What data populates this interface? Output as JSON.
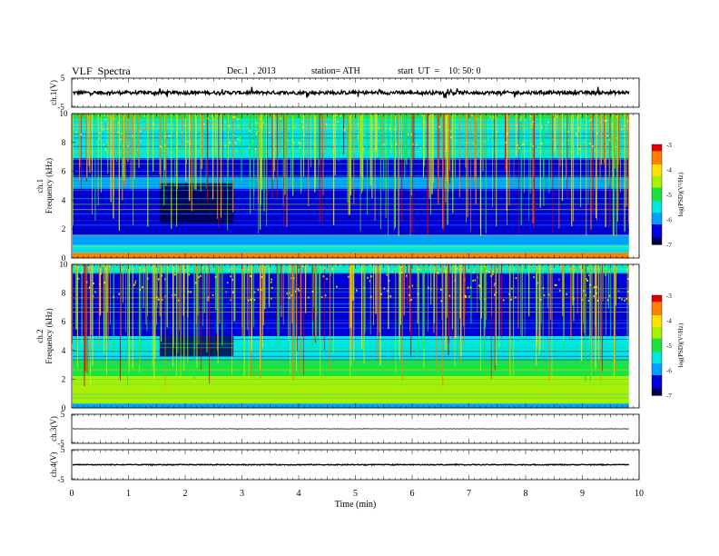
{
  "header": {
    "title": "VLF  Spectra",
    "date": "Dec.1  , 2013",
    "station": "station= ATH",
    "start": "start  UT  =    10: 50: 0"
  },
  "chart_data": [
    {
      "type": "line",
      "name": "ch.1 waveform",
      "ylabel": "ch.1(V)",
      "yticks": [
        "5",
        "-5"
      ],
      "ylim": [
        -5,
        5
      ],
      "xlim": [
        0,
        10
      ],
      "data_end": 9.82,
      "baseline": 0.0,
      "amplitude": 0.6,
      "spike_amplitude": 1.6,
      "color": "#000000"
    },
    {
      "type": "heatmap",
      "name": "ch.1 spectrogram",
      "ylabel_top": "ch.1",
      "ylabel": "Frequency  (kHz)",
      "yticks": [
        "0",
        "2",
        "4",
        "6",
        "8",
        "10"
      ],
      "ylim": [
        0,
        10
      ],
      "xlim": [
        0,
        10
      ],
      "data_end": 9.82,
      "colorbar": {
        "label": "log(PSD)(V²/Hz)",
        "ticks": [
          "-3",
          "-4",
          "-5",
          "-6",
          "-7"
        ],
        "range": [
          -7,
          -3
        ]
      },
      "bands": [
        {
          "f0": 9.6,
          "f1": 10,
          "level": -4.8
        },
        {
          "f0": 6.9,
          "f1": 9.6,
          "level": -5.3
        },
        {
          "f0": 5.6,
          "f1": 6.9,
          "level": -6.7
        },
        {
          "f0": 4.8,
          "f1": 5.6,
          "level": -6.0
        },
        {
          "f0": 2.6,
          "f1": 4.8,
          "level": -6.6
        },
        {
          "f0": 1.6,
          "f1": 2.6,
          "level": -6.4
        },
        {
          "f0": 0.9,
          "f1": 1.6,
          "level": -6.0
        },
        {
          "f0": 0.4,
          "f1": 0.9,
          "level": -5.4
        },
        {
          "f0": 0.0,
          "f1": 0.4,
          "level": -3.4
        }
      ],
      "quiet_region": {
        "t0": 1.55,
        "t1": 2.85,
        "f0": 2.4,
        "f1": 5.2,
        "level": -7.0
      }
    },
    {
      "type": "heatmap",
      "name": "ch.2 spectrogram",
      "ylabel_top": "ch.2",
      "ylabel": "Frequency  (kHz)",
      "yticks": [
        "0",
        "2",
        "4",
        "6",
        "8",
        "10"
      ],
      "ylim": [
        0,
        10
      ],
      "xlim": [
        0,
        10
      ],
      "data_end": 9.82,
      "colorbar": {
        "label": "log(PSD)(V²/Hz)",
        "ticks": [
          "-3",
          "-4",
          "-5",
          "-6",
          "-7"
        ],
        "range": [
          -7,
          -3
        ]
      },
      "bands": [
        {
          "f0": 9.4,
          "f1": 10,
          "level": -5.6
        },
        {
          "f0": 6.1,
          "f1": 9.4,
          "level": -6.4
        },
        {
          "f0": 5.0,
          "f1": 6.1,
          "level": -6.7
        },
        {
          "f0": 3.4,
          "f1": 5.0,
          "level": -5.6
        },
        {
          "f0": 2.2,
          "f1": 3.4,
          "level": -5.2
        },
        {
          "f0": 0.9,
          "f1": 2.2,
          "level": -4.7
        },
        {
          "f0": 0.3,
          "f1": 0.9,
          "level": -4.3
        },
        {
          "f0": 0.0,
          "f1": 0.3,
          "level": -5.8
        }
      ],
      "quiet_region": {
        "t0": 1.55,
        "t1": 2.85,
        "f0": 3.6,
        "f1": 5.0,
        "level": -6.9
      }
    },
    {
      "type": "line",
      "name": "ch.3 waveform",
      "ylabel": "ch.3(V)",
      "yticks": [
        "5",
        "-5"
      ],
      "ylim": [
        -5,
        5
      ],
      "xlim": [
        0,
        10
      ],
      "data_end": 9.82,
      "baseline": 0.0,
      "amplitude": 0.05,
      "spike_amplitude": 0.05,
      "color": "#000000"
    },
    {
      "type": "line",
      "name": "ch.4 waveform",
      "ylabel": "ch.4(V)",
      "yticks": [
        "5",
        "-5"
      ],
      "ylim": [
        -5,
        5
      ],
      "xlim": [
        0,
        10
      ],
      "data_end": 9.82,
      "baseline": 0.0,
      "amplitude": 0.15,
      "spike_amplitude": 0.15,
      "color": "#000000",
      "xlabel": "Time  (min)",
      "xticks": [
        "0",
        "1",
        "2",
        "3",
        "4",
        "5",
        "6",
        "7",
        "8",
        "9",
        "10"
      ]
    }
  ],
  "colormap": [
    "#000050",
    "#0000d8",
    "#00a0ff",
    "#00e6e0",
    "#20e040",
    "#a8f000",
    "#ffe000",
    "#ff8000",
    "#e00000"
  ]
}
